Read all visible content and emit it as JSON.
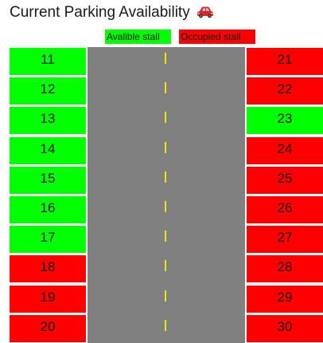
{
  "page": {
    "title": "Current Parking Availability"
  },
  "legend": {
    "available_label": "Avalible stall",
    "occupied_label": "Occupied stall",
    "available_color": "#00ff00",
    "occupied_color": "#ff0000"
  },
  "left_stalls": [
    {
      "number": "11",
      "status": "available"
    },
    {
      "number": "12",
      "status": "available"
    },
    {
      "number": "13",
      "status": "available"
    },
    {
      "number": "14",
      "status": "available"
    },
    {
      "number": "15",
      "status": "available"
    },
    {
      "number": "16",
      "status": "available"
    },
    {
      "number": "17",
      "status": "available"
    },
    {
      "number": "18",
      "status": "occupied"
    },
    {
      "number": "19",
      "status": "occupied"
    },
    {
      "number": "20",
      "status": "occupied"
    }
  ],
  "right_stalls": [
    {
      "number": "21",
      "status": "occupied"
    },
    {
      "number": "22",
      "status": "occupied"
    },
    {
      "number": "23",
      "status": "available"
    },
    {
      "number": "24",
      "status": "occupied"
    },
    {
      "number": "25",
      "status": "occupied"
    },
    {
      "number": "26",
      "status": "occupied"
    },
    {
      "number": "27",
      "status": "occupied"
    },
    {
      "number": "28",
      "status": "occupied"
    },
    {
      "number": "29",
      "status": "occupied"
    },
    {
      "number": "30",
      "status": "occupied"
    }
  ],
  "road": {
    "color": "#808080",
    "lane_marking_color": "#f2e600"
  },
  "icons": {
    "title_icon": "red-car-icon"
  }
}
